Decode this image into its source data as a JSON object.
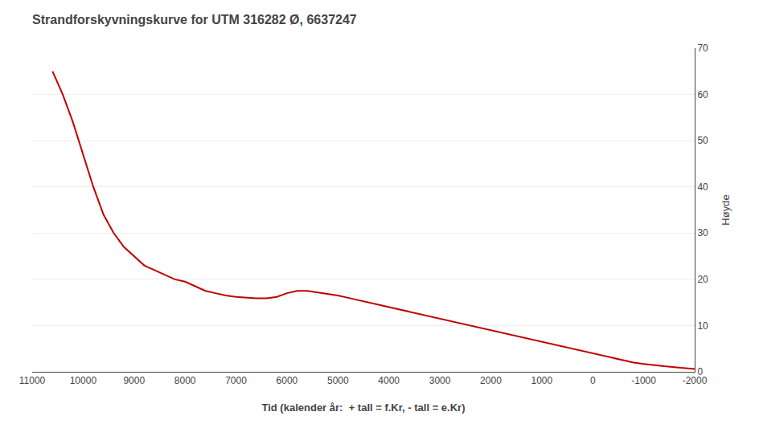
{
  "chart_data": {
    "type": "line",
    "title": "Strandforskyvningskurve for UTM 316282 Ø, 6637247",
    "xlabel": "Tid (kalender år:  + tall = f.Kr, - tall = e.Kr)",
    "ylabel": "Høyde",
    "color": "#c00000",
    "grid": "y",
    "xlim": [
      11000,
      -2000
    ],
    "ylim": [
      0,
      70
    ],
    "xticks": [
      11000,
      10000,
      9000,
      8000,
      7000,
      6000,
      5000,
      4000,
      3000,
      2000,
      1000,
      0,
      -1000,
      -2000
    ],
    "yticks": [
      0,
      10,
      20,
      30,
      40,
      50,
      60,
      70
    ],
    "x": [
      10600,
      10400,
      10200,
      10000,
      9800,
      9600,
      9400,
      9200,
      9000,
      8800,
      8600,
      8400,
      8200,
      8000,
      7800,
      7600,
      7400,
      7200,
      7000,
      6800,
      6600,
      6400,
      6200,
      6000,
      5800,
      5600,
      5400,
      5200,
      5000,
      4800,
      4600,
      4400,
      4200,
      4000,
      3800,
      3600,
      3400,
      3200,
      3000,
      2800,
      2600,
      2400,
      2200,
      2000,
      1800,
      1600,
      1400,
      1200,
      1000,
      800,
      600,
      400,
      200,
      0,
      -200,
      -400,
      -600,
      -800,
      -1000,
      -1200,
      -1400,
      -1600,
      -1800,
      -2000
    ],
    "values": [
      65,
      60,
      54,
      47,
      40,
      34,
      30,
      27,
      25,
      23,
      22,
      21,
      20,
      19.5,
      18.5,
      17.5,
      17.0,
      16.5,
      16.2,
      16.0,
      15.9,
      15.9,
      16.2,
      17.0,
      17.5,
      17.5,
      17.2,
      16.8,
      16.5,
      16.0,
      15.5,
      15.0,
      14.5,
      14.0,
      13.5,
      13.0,
      12.5,
      12.0,
      11.5,
      11.0,
      10.5,
      10.0,
      9.5,
      9.0,
      8.5,
      8.0,
      7.5,
      7.0,
      6.5,
      6.0,
      5.5,
      5.0,
      4.5,
      4.0,
      3.5,
      3.0,
      2.5,
      2.0,
      1.7,
      1.4,
      1.2,
      1.0,
      0.8,
      0.6
    ]
  }
}
